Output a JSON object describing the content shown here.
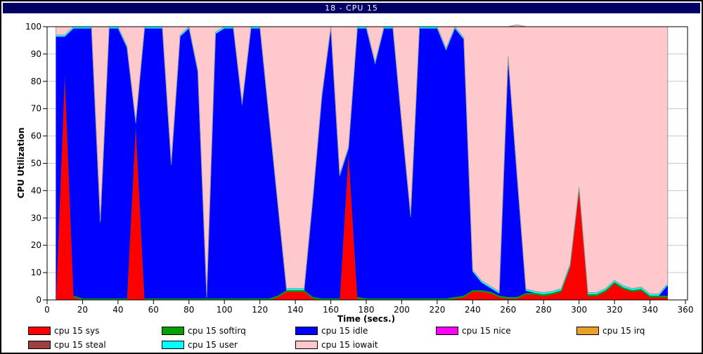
{
  "window": {
    "title": "18 - CPU 15"
  },
  "chart_data": {
    "type": "area",
    "stacked": true,
    "title": "18 - CPU 15",
    "xlabel": "Time (secs.)",
    "ylabel": "CPU Utilization",
    "xlim": [
      0,
      360
    ],
    "ylim": [
      0,
      100
    ],
    "x_ticks": [
      0,
      20,
      40,
      60,
      80,
      100,
      120,
      140,
      160,
      180,
      200,
      220,
      240,
      260,
      280,
      300,
      320,
      340,
      360
    ],
    "y_ticks": [
      0,
      10,
      20,
      30,
      40,
      50,
      60,
      70,
      80,
      90,
      100
    ],
    "grid": "horizontal",
    "grid_color": "#C8C8C8",
    "legend_position": "bottom",
    "plot_bg": "#FFFFFF",
    "x": [
      5,
      10,
      15,
      20,
      25,
      30,
      35,
      40,
      45,
      50,
      55,
      60,
      65,
      70,
      75,
      80,
      85,
      90,
      95,
      100,
      105,
      110,
      115,
      120,
      125,
      130,
      135,
      140,
      145,
      150,
      155,
      160,
      165,
      170,
      175,
      180,
      185,
      190,
      195,
      200,
      205,
      210,
      215,
      220,
      225,
      230,
      235,
      240,
      245,
      250,
      255,
      260,
      265,
      270,
      275,
      280,
      285,
      290,
      295,
      300,
      305,
      310,
      315,
      320,
      325,
      330,
      335,
      340,
      345,
      350
    ],
    "series": [
      {
        "name": "cpu 15 sys",
        "color": "#FF0000",
        "values": [
          0,
          83,
          1,
          0,
          0,
          0,
          0,
          0,
          0,
          64,
          0,
          0,
          0,
          0,
          0,
          0,
          0,
          0,
          0,
          0,
          0,
          0,
          0,
          0,
          0,
          1,
          3,
          3,
          3,
          0.5,
          0,
          0,
          0,
          54,
          0.5,
          0,
          0,
          0,
          0,
          0,
          0,
          0,
          0,
          0,
          0,
          0.5,
          1,
          3,
          3,
          2.5,
          1,
          0.5,
          0.5,
          2,
          2,
          1.5,
          2,
          3,
          12,
          40,
          1.5,
          1.5,
          3,
          6,
          4,
          3,
          3.5,
          1,
          1,
          1
        ]
      },
      {
        "name": "cpu 15 softirq",
        "color": "#00A000",
        "values": 0.6
      },
      {
        "name": "cpu 15 idle",
        "color": "#0000FF",
        "values": [
          95.8,
          12.8,
          97.8,
          98.8,
          98.8,
          27.8,
          98.8,
          98.8,
          91.8,
          0,
          98.8,
          98.8,
          98.8,
          48.8,
          95.8,
          98.8,
          82.8,
          0.3,
          96.8,
          98.8,
          98.8,
          70.8,
          98.8,
          98.8,
          66.8,
          33.8,
          0,
          0,
          0,
          36.3,
          73.8,
          98.8,
          44.8,
          0.8,
          98.3,
          98.8,
          85.8,
          98.8,
          98.8,
          63.8,
          29.8,
          98.8,
          98.8,
          98.8,
          90.8,
          98.3,
          93.8,
          6.8,
          2.8,
          1.3,
          0.8,
          87.3,
          44.3,
          0.8,
          0,
          0,
          0,
          0,
          0,
          0,
          0,
          0,
          0,
          0,
          0,
          0,
          0,
          0,
          0,
          3.8
        ]
      },
      {
        "name": "cpu 15 nice",
        "color": "#FF00FF",
        "values": 0
      },
      {
        "name": "cpu 15 irq",
        "color": "#E8A028",
        "values": 0
      },
      {
        "name": "cpu 15 steal",
        "color": "#9E4040",
        "values": 0
      },
      {
        "name": "cpu 15 user",
        "color": "#00FFFF",
        "values": 0.6
      },
      {
        "name": "cpu 15 iowait",
        "color": "#FFC8CD",
        "border": "#999999",
        "values": [
          3,
          3,
          0,
          0,
          0,
          71,
          0,
          0,
          7,
          34.8,
          0,
          0,
          0,
          50,
          3,
          0,
          16,
          98.5,
          2,
          0,
          0,
          28,
          0,
          0,
          32,
          64,
          95.8,
          95.8,
          95.8,
          62,
          25,
          0,
          54,
          44,
          0,
          0,
          13,
          0,
          0,
          35,
          69,
          0,
          0,
          0,
          8,
          0,
          4,
          89,
          93,
          95,
          97,
          11,
          54.7,
          96,
          96.8,
          97.3,
          96.8,
          95.8,
          86.8,
          58.8,
          97.3,
          97.3,
          95.8,
          92.8,
          94.8,
          95.8,
          95.3,
          97.8,
          97.8,
          94
        ]
      }
    ]
  },
  "legend": {
    "items": [
      {
        "label": "cpu 15 sys",
        "color": "#FF0000"
      },
      {
        "label": "cpu 15 softirq",
        "color": "#00A000"
      },
      {
        "label": "cpu 15 idle",
        "color": "#0000FF"
      },
      {
        "label": "cpu 15 nice",
        "color": "#FF00FF"
      },
      {
        "label": "cpu 15 irq",
        "color": "#E8A028"
      },
      {
        "label": "cpu 15 steal",
        "color": "#9E4040"
      },
      {
        "label": "cpu 15 user",
        "color": "#00FFFF"
      },
      {
        "label": "cpu 15 iowait",
        "color": "#FFC8CD"
      }
    ]
  }
}
